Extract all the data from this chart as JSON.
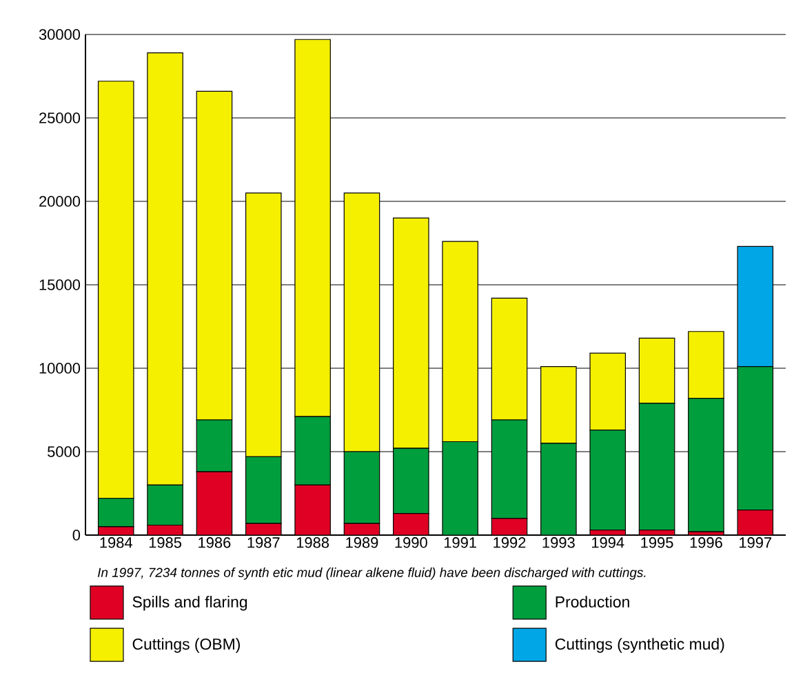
{
  "chart_data": {
    "type": "bar",
    "stacked": true,
    "categories": [
      "1984",
      "1985",
      "1986",
      "1987",
      "1988",
      "1989",
      "1990",
      "1991",
      "1992",
      "1993",
      "1994",
      "1995",
      "1996",
      "1997"
    ],
    "series": [
      {
        "name": "Spills and flaring",
        "color": "#e00024",
        "values": [
          500,
          600,
          3800,
          700,
          3000,
          700,
          1300,
          0,
          1000,
          0,
          300,
          300,
          200,
          1500
        ]
      },
      {
        "name": "Production",
        "color": "#009e3d",
        "values": [
          1700,
          2400,
          3100,
          4000,
          4100,
          4300,
          3900,
          5600,
          5900,
          5500,
          6000,
          7600,
          8000,
          8600
        ]
      },
      {
        "name": "Cuttings (OBM)",
        "color": "#f5f000",
        "values": [
          25000,
          25900,
          19700,
          15800,
          22600,
          15500,
          13800,
          12000,
          7300,
          4600,
          4600,
          3900,
          4000,
          0
        ]
      },
      {
        "name": "Cuttings (synthetic mud)",
        "color": "#00a6e6",
        "values": [
          0,
          0,
          0,
          0,
          0,
          0,
          0,
          0,
          0,
          0,
          0,
          0,
          0,
          7200
        ]
      }
    ],
    "ylim": [
      0,
      30000
    ],
    "yticks": [
      0,
      5000,
      10000,
      15000,
      20000,
      25000,
      30000
    ],
    "grid": "y",
    "legend": "bottom",
    "annotations": [
      "In 1997, 7234 tonnes of synth etic mud (linear alkene fluid) have been discharged with cuttings."
    ]
  }
}
